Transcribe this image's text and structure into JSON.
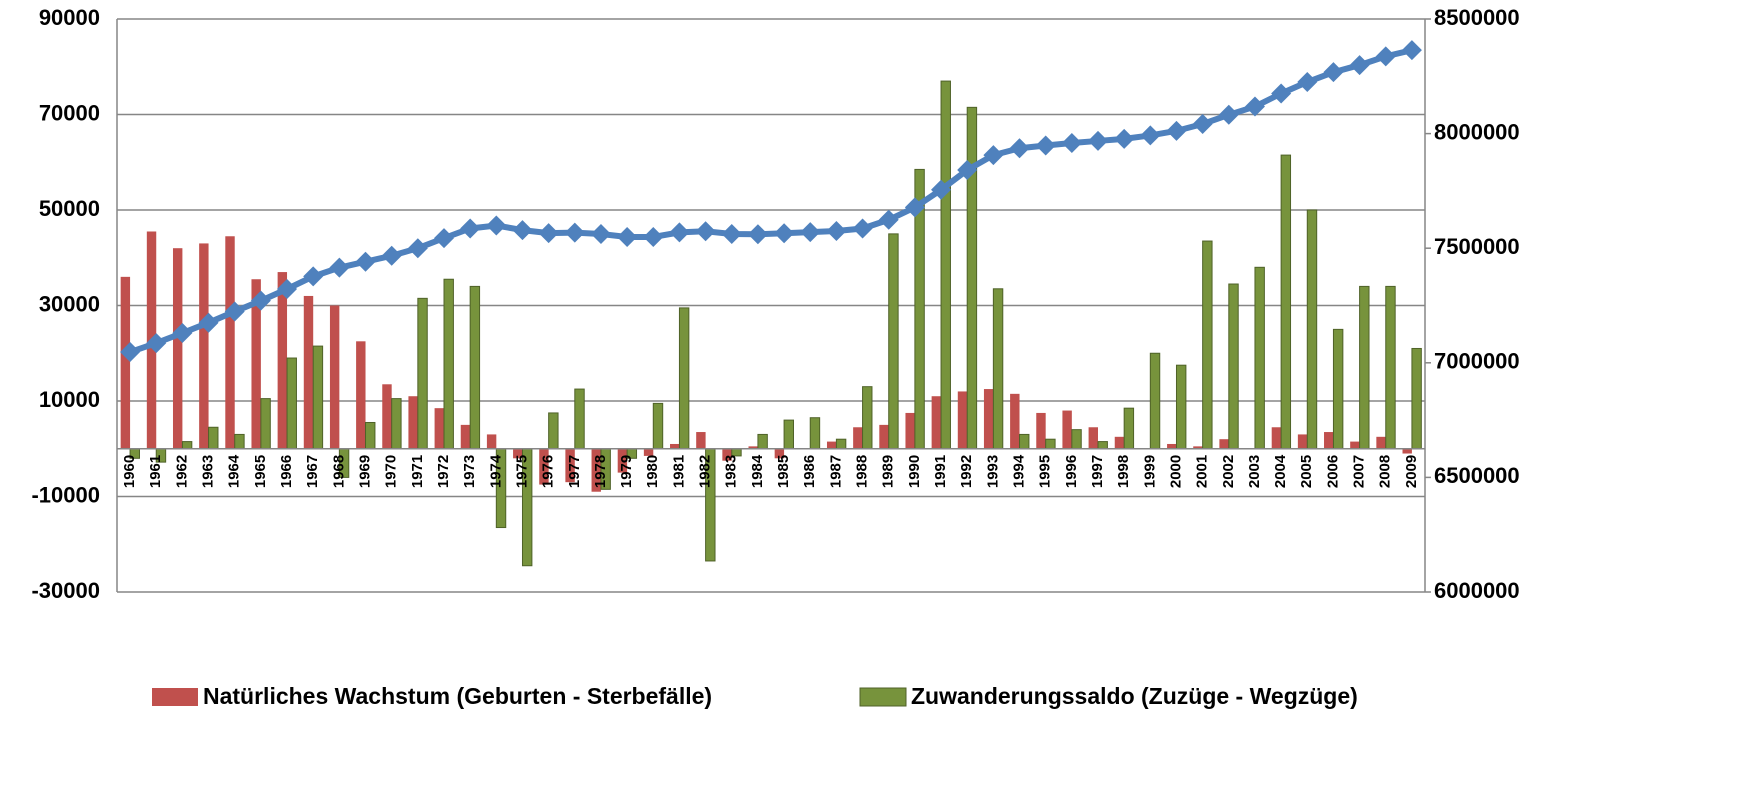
{
  "chart_data": {
    "type": "bar",
    "categories": [
      "1960",
      "1961",
      "1962",
      "1963",
      "1964",
      "1965",
      "1966",
      "1967",
      "1968",
      "1969",
      "1970",
      "1971",
      "1972",
      "1973",
      "1974",
      "1975",
      "1976",
      "1977",
      "1978",
      "1979",
      "1980",
      "1981",
      "1982",
      "1983",
      "1984",
      "1985",
      "1986",
      "1987",
      "1988",
      "1989",
      "1990",
      "1991",
      "1992",
      "1993",
      "1994",
      "1995",
      "1996",
      "1997",
      "1998",
      "1999",
      "2000",
      "2001",
      "2002",
      "2003",
      "2004",
      "2005",
      "2006",
      "2007",
      "2008",
      "2009"
    ],
    "series": [
      {
        "name": "Natürliches Wachstum (Geburten - Sterbefälle)",
        "color": "#c0504d",
        "type": "bar",
        "values": [
          36000,
          45500,
          42000,
          43000,
          44500,
          35500,
          37000,
          32000,
          30000,
          22500,
          13500,
          11000,
          8500,
          5000,
          3000,
          -2000,
          -7500,
          -7000,
          -9000,
          -5000,
          -1500,
          1000,
          3500,
          -2500,
          500,
          -2000,
          0,
          1500,
          4500,
          5000,
          7500,
          11000,
          12000,
          12500,
          11500,
          7500,
          8000,
          4500,
          2500,
          0,
          1000,
          500,
          2000,
          0,
          4500,
          3000,
          3500,
          1500,
          2500,
          -1000
        ]
      },
      {
        "name": "Zuwanderungssaldo (Zuzüge - Wegzüge)",
        "color": "#77933c",
        "type": "bar",
        "values": [
          -2000,
          -2800,
          1500,
          4500,
          3000,
          10500,
          19000,
          21500,
          -6000,
          5500,
          10500,
          31500,
          35500,
          34000,
          -16500,
          -24500,
          7500,
          12500,
          -8500,
          -2000,
          9500,
          29500,
          -23500,
          -1500,
          3000,
          6000,
          6500,
          2000,
          13000,
          45000,
          58500,
          77000,
          71500,
          33500,
          3000,
          2000,
          4000,
          1500,
          8500,
          20000,
          17500,
          43500,
          34500,
          38000,
          61500,
          50000,
          25000,
          34000,
          34000,
          21000
        ]
      },
      {
        "color": "#4f81bd",
        "type": "line",
        "axis": "y2",
        "values": [
          7047000,
          7086000,
          7130000,
          7175000,
          7224000,
          7271000,
          7322000,
          7377000,
          7415000,
          7441000,
          7467000,
          7500000,
          7544000,
          7586000,
          7599000,
          7579000,
          7566000,
          7568000,
          7562000,
          7549000,
          7549000,
          7569000,
          7574000,
          7562000,
          7561000,
          7565000,
          7570000,
          7575000,
          7586000,
          7624000,
          7678000,
          7755000,
          7841000,
          7906000,
          7936000,
          7948000,
          7959000,
          7968000,
          7977000,
          7992000,
          8012000,
          8042000,
          8082000,
          8118000,
          8175000,
          8225000,
          8268000,
          8299000,
          8337000,
          8364000
        ]
      }
    ],
    "ylim": [
      -30000,
      90000
    ],
    "yticks": [
      -30000,
      -10000,
      10000,
      30000,
      50000,
      70000,
      90000
    ],
    "y2lim": [
      6000000,
      8500000
    ],
    "y2ticks": [
      6000000,
      6500000,
      7000000,
      7500000,
      8000000,
      8500000
    ],
    "grid": true,
    "legend": "bottom"
  }
}
